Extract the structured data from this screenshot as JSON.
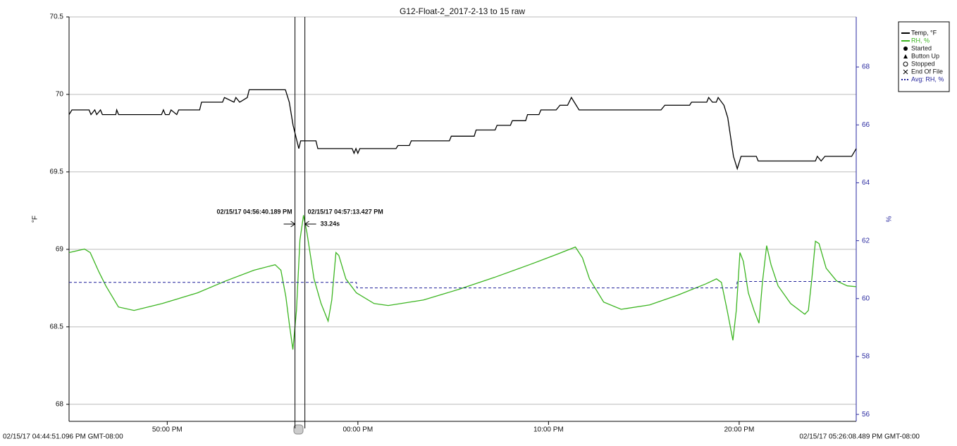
{
  "chart_data": {
    "type": "line",
    "title": "G12-Float-2_2017-2-13 to 15 raw",
    "ylabel": "°F",
    "y2label": "%",
    "xlim": [
      44.85,
      86.14
    ],
    "xticks": [
      {
        "value": 50,
        "label": "50:00 PM"
      },
      {
        "value": 60,
        "label": "00:00 PM"
      },
      {
        "value": 70,
        "label": "10:00 PM"
      },
      {
        "value": 80,
        "label": "20:00 PM"
      }
    ],
    "ylim": [
      67.89,
      70.5
    ],
    "yticks": [
      68,
      68.5,
      69,
      69.5,
      70,
      70.5
    ],
    "y2lim": [
      55.76,
      69.73
    ],
    "y2ticks": [
      56,
      58,
      60,
      62,
      64,
      66,
      68
    ],
    "grid": true,
    "legend": "top-right",
    "start_label": "02/15/17 04:44:51.096 PM GMT-08:00",
    "end_label": "02/15/17 05:26:08.489 PM GMT-08:00",
    "legend_markers": [
      "Started",
      "Button Up",
      "Stopped",
      "End Of File"
    ],
    "cursors": [
      {
        "x": 56.7,
        "label": "02/15/17 04:56:40.189 PM"
      },
      {
        "x": 57.22,
        "label": "02/15/17 04:57:13.427 PM"
      }
    ],
    "cursor_delta": "33.24s",
    "series": [
      {
        "name": "Temp, °F",
        "color": "#000000",
        "x": [
          44.85,
          45.0,
          45.9,
          46.0,
          46.2,
          46.3,
          46.5,
          46.6,
          47.3,
          47.35,
          47.45,
          49.7,
          49.8,
          49.9,
          50.1,
          50.2,
          50.5,
          50.6,
          51.7,
          51.8,
          52.9,
          53.0,
          53.5,
          53.6,
          53.8,
          54.2,
          54.3,
          56.2,
          56.4,
          56.6,
          56.9,
          57.0,
          57.8,
          57.9,
          59.7,
          59.8,
          59.9,
          60.0,
          60.1,
          62.0,
          62.1,
          62.7,
          62.8,
          64.8,
          64.9,
          66.1,
          66.2,
          67.2,
          67.3,
          68.0,
          68.1,
          68.8,
          68.9,
          69.5,
          69.6,
          70.4,
          70.6,
          71.0,
          71.2,
          71.6,
          75.9,
          76.1,
          77.4,
          77.5,
          78.3,
          78.4,
          78.6,
          78.8,
          78.9,
          79.2,
          79.4,
          79.7,
          79.9,
          80.1,
          80.9,
          81.0,
          84.0,
          84.1,
          84.3,
          84.5,
          85.9,
          86.14
        ],
        "values": [
          69.87,
          69.9,
          69.9,
          69.87,
          69.9,
          69.87,
          69.9,
          69.87,
          69.87,
          69.9,
          69.87,
          69.87,
          69.9,
          69.87,
          69.87,
          69.9,
          69.87,
          69.9,
          69.9,
          69.95,
          69.95,
          69.98,
          69.95,
          69.98,
          69.95,
          69.98,
          70.03,
          70.03,
          69.95,
          69.8,
          69.65,
          69.7,
          69.7,
          69.65,
          69.65,
          69.62,
          69.65,
          69.62,
          69.65,
          69.65,
          69.67,
          69.67,
          69.7,
          69.7,
          69.73,
          69.73,
          69.77,
          69.77,
          69.8,
          69.8,
          69.83,
          69.83,
          69.87,
          69.87,
          69.9,
          69.9,
          69.93,
          69.93,
          69.98,
          69.9,
          69.9,
          69.93,
          69.93,
          69.95,
          69.95,
          69.98,
          69.95,
          69.95,
          69.98,
          69.93,
          69.85,
          69.6,
          69.52,
          69.6,
          69.6,
          69.57,
          69.57,
          69.6,
          69.57,
          69.6,
          69.6,
          69.65
        ]
      },
      {
        "name": "RH, %",
        "color": "#3cb521",
        "axis": "y2",
        "x": [
          44.85,
          45.66,
          45.96,
          46.41,
          46.78,
          47.44,
          48.26,
          49.74,
          51.59,
          53.07,
          54.55,
          55.66,
          55.96,
          56.22,
          56.41,
          56.59,
          56.78,
          56.96,
          57.15,
          57.33,
          57.7,
          58.07,
          58.44,
          58.63,
          58.85,
          59.0,
          59.37,
          59.92,
          60.85,
          61.59,
          63.44,
          65.3,
          67.15,
          69.0,
          70.48,
          71.41,
          71.78,
          72.15,
          72.89,
          73.81,
          75.3,
          76.78,
          78.26,
          78.81,
          79.07,
          79.37,
          79.67,
          79.85,
          80.04,
          80.22,
          80.48,
          80.78,
          81.04,
          81.22,
          81.44,
          81.67,
          82.04,
          82.7,
          83.44,
          83.63,
          83.81,
          84.0,
          84.19,
          84.56,
          85.11,
          85.67,
          86.14
        ],
        "values": [
          61.59,
          61.71,
          61.59,
          60.93,
          60.44,
          59.71,
          59.59,
          59.83,
          60.2,
          60.61,
          60.98,
          61.17,
          60.98,
          60.07,
          59.1,
          58.24,
          59.59,
          62.02,
          62.88,
          62.27,
          60.68,
          59.83,
          59.22,
          59.95,
          61.59,
          61.49,
          60.68,
          60.2,
          59.83,
          59.76,
          59.95,
          60.32,
          60.73,
          61.17,
          61.54,
          61.78,
          61.41,
          60.68,
          59.88,
          59.63,
          59.78,
          60.12,
          60.51,
          60.68,
          60.56,
          59.59,
          58.56,
          59.59,
          61.59,
          61.29,
          60.2,
          59.59,
          59.15,
          60.56,
          61.83,
          61.17,
          60.44,
          59.83,
          59.46,
          59.59,
          60.68,
          61.98,
          61.9,
          61.05,
          60.61,
          60.44,
          60.41
        ]
      },
      {
        "name": "Avg: RH, %",
        "color": "#1f1f99",
        "axis": "y2",
        "dashed": true,
        "x": [
          44.85,
          59.92,
          59.95,
          79.85,
          79.9,
          86.14
        ],
        "values": [
          60.56,
          60.56,
          60.37,
          60.37,
          60.59,
          60.59
        ]
      }
    ]
  }
}
